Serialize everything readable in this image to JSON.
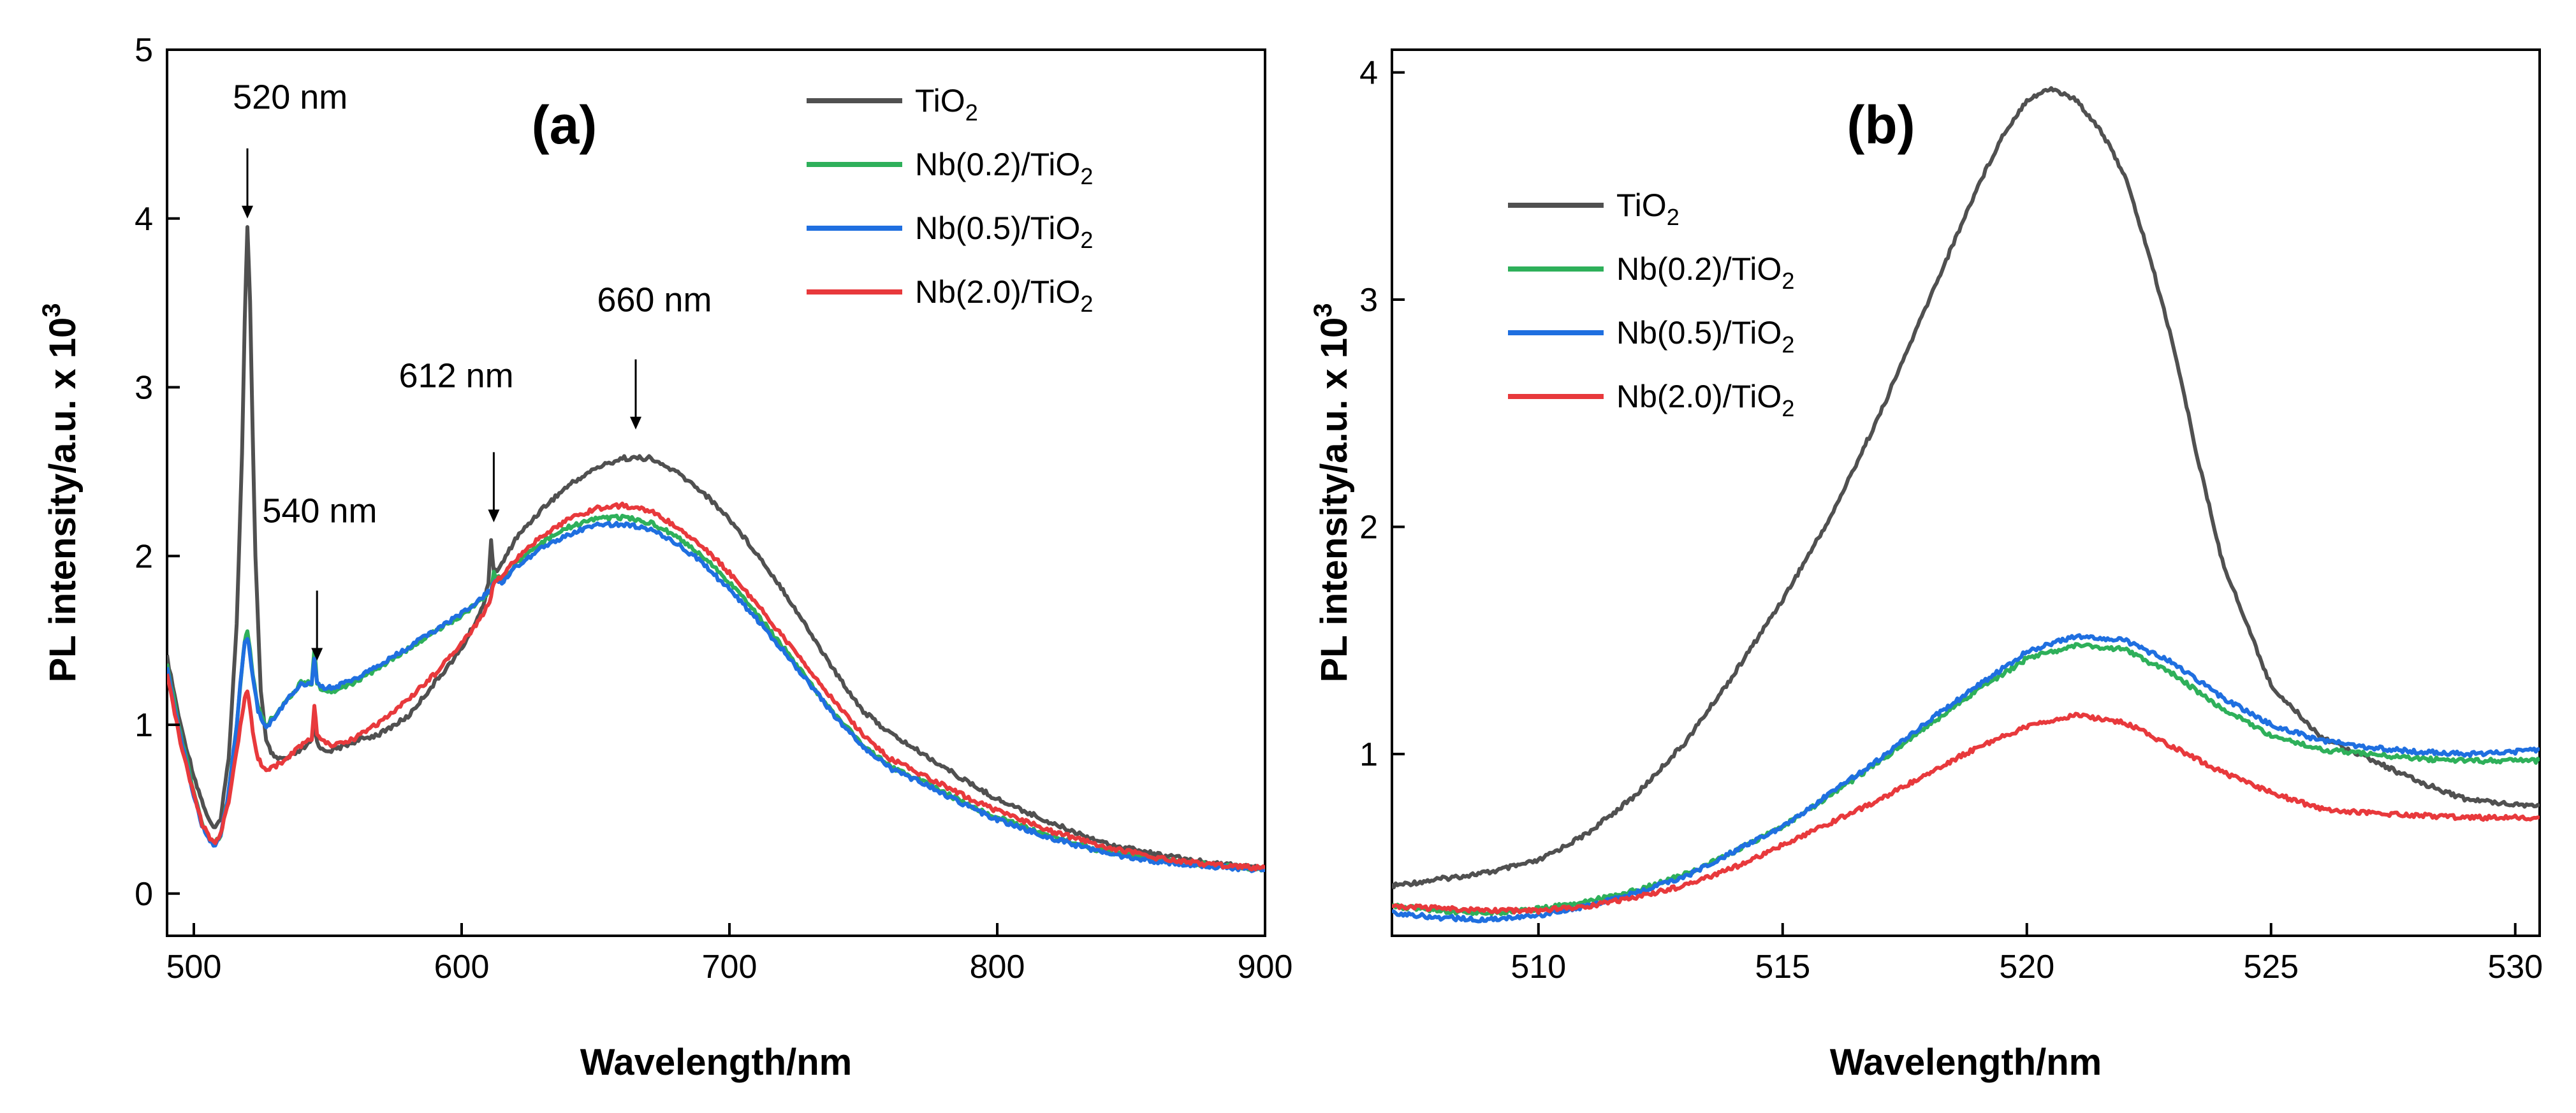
{
  "chart_data": [
    {
      "type": "line",
      "panel_label": "(a)",
      "xlabel": "Wavelength/nm",
      "ylabel": "PL intensity/a.u. x 10",
      "ylabel_sup": "3",
      "xlim": [
        490,
        900
      ],
      "ylim": [
        -0.25,
        5
      ],
      "xticks": [
        500,
        600,
        700,
        800,
        900
      ],
      "xtick_labels": [
        "500",
        "600",
        "700",
        "800",
        "900"
      ],
      "yticks": [
        0,
        1,
        2,
        3,
        4,
        5
      ],
      "ytick_labels": [
        "0",
        "1",
        "2",
        "3",
        "4",
        "5"
      ],
      "legend_position": "top-right",
      "series": [
        {
          "name": "TiO2",
          "label_main": "TiO",
          "label_sub": "2",
          "color": "#505050",
          "x": [
            490,
            495,
            500,
            503,
            506,
            508,
            510,
            513,
            516,
            518,
            519,
            520,
            521,
            522,
            523,
            525,
            527,
            530,
            535,
            540,
            544,
            545,
            546,
            548,
            552,
            560,
            570,
            580,
            590,
            600,
            608,
            610,
            611,
            612,
            615,
            620,
            630,
            640,
            650,
            660,
            670,
            680,
            690,
            700,
            710,
            720,
            730,
            740,
            750,
            760,
            770,
            780,
            790,
            800,
            820,
            840,
            860,
            880,
            900
          ],
          "y": [
            1.4,
            1.0,
            0.7,
            0.55,
            0.42,
            0.38,
            0.45,
            0.8,
            1.6,
            2.6,
            3.4,
            3.95,
            3.5,
            2.7,
            2.0,
            1.2,
            0.9,
            0.8,
            0.8,
            0.85,
            0.9,
            1.0,
            0.9,
            0.85,
            0.85,
            0.9,
            0.95,
            1.05,
            1.25,
            1.45,
            1.7,
            1.85,
            2.1,
            1.9,
            1.95,
            2.1,
            2.28,
            2.42,
            2.52,
            2.58,
            2.58,
            2.5,
            2.38,
            2.22,
            2.02,
            1.8,
            1.55,
            1.3,
            1.08,
            0.95,
            0.85,
            0.75,
            0.65,
            0.56,
            0.42,
            0.3,
            0.23,
            0.18,
            0.15
          ]
        },
        {
          "name": "Nb(0.2)/TiO2",
          "label_main": "Nb(0.2)/TiO",
          "label_sub": "2",
          "color": "#2eb05a",
          "x": [
            490,
            495,
            500,
            503,
            506,
            508,
            510,
            513,
            516,
            518,
            519,
            520,
            521,
            522,
            524,
            527,
            530,
            535,
            540,
            544,
            545,
            546,
            548,
            552,
            560,
            570,
            580,
            590,
            600,
            608,
            611,
            612,
            615,
            620,
            630,
            640,
            650,
            660,
            670,
            680,
            690,
            700,
            710,
            720,
            730,
            740,
            750,
            760,
            770,
            780,
            790,
            800,
            820,
            840,
            860,
            880,
            900
          ],
          "y": [
            1.35,
            0.95,
            0.6,
            0.42,
            0.32,
            0.3,
            0.35,
            0.6,
            1.0,
            1.35,
            1.5,
            1.55,
            1.45,
            1.3,
            1.1,
            1.0,
            1.05,
            1.15,
            1.25,
            1.25,
            1.45,
            1.25,
            1.2,
            1.2,
            1.25,
            1.35,
            1.45,
            1.55,
            1.65,
            1.75,
            1.8,
            1.9,
            1.85,
            1.95,
            2.08,
            2.17,
            2.22,
            2.23,
            2.2,
            2.12,
            2.0,
            1.84,
            1.66,
            1.46,
            1.25,
            1.05,
            0.88,
            0.75,
            0.68,
            0.6,
            0.52,
            0.45,
            0.34,
            0.25,
            0.2,
            0.17,
            0.14
          ]
        },
        {
          "name": "Nb(0.5)/TiO2",
          "label_main": "Nb(0.5)/TiO",
          "label_sub": "2",
          "color": "#1f6fe0",
          "x": [
            490,
            495,
            500,
            503,
            506,
            508,
            510,
            513,
            516,
            518,
            519,
            520,
            521,
            522,
            524,
            527,
            530,
            535,
            540,
            544,
            545,
            546,
            548,
            552,
            560,
            570,
            580,
            590,
            600,
            608,
            611,
            612,
            615,
            620,
            630,
            640,
            650,
            660,
            670,
            680,
            690,
            700,
            710,
            720,
            730,
            740,
            750,
            760,
            770,
            780,
            790,
            800,
            820,
            840,
            860,
            880,
            900
          ],
          "y": [
            1.33,
            0.93,
            0.58,
            0.41,
            0.31,
            0.29,
            0.34,
            0.6,
            1.0,
            1.35,
            1.5,
            1.52,
            1.42,
            1.28,
            1.08,
            0.98,
            1.04,
            1.15,
            1.24,
            1.25,
            1.38,
            1.26,
            1.22,
            1.22,
            1.27,
            1.36,
            1.46,
            1.56,
            1.66,
            1.76,
            1.8,
            1.85,
            1.84,
            1.93,
            2.05,
            2.13,
            2.18,
            2.19,
            2.16,
            2.08,
            1.96,
            1.8,
            1.63,
            1.44,
            1.24,
            1.04,
            0.87,
            0.74,
            0.67,
            0.59,
            0.51,
            0.44,
            0.33,
            0.24,
            0.19,
            0.16,
            0.14
          ]
        },
        {
          "name": "Nb(2.0)/TiO2",
          "label_main": "Nb(2.0)/TiO",
          "label_sub": "2",
          "color": "#e8393c",
          "x": [
            490,
            495,
            500,
            503,
            506,
            508,
            510,
            513,
            516,
            518,
            519,
            520,
            521,
            522,
            524,
            527,
            530,
            535,
            540,
            544,
            545,
            546,
            548,
            552,
            560,
            570,
            580,
            590,
            600,
            608,
            611,
            612,
            615,
            620,
            630,
            640,
            650,
            660,
            670,
            680,
            690,
            700,
            710,
            720,
            730,
            740,
            750,
            760,
            770,
            780,
            790,
            800,
            820,
            840,
            860,
            880,
            900
          ],
          "y": [
            1.3,
            0.9,
            0.58,
            0.42,
            0.32,
            0.3,
            0.35,
            0.55,
            0.85,
            1.05,
            1.15,
            1.2,
            1.1,
            0.95,
            0.8,
            0.72,
            0.75,
            0.8,
            0.88,
            0.92,
            1.1,
            0.95,
            0.9,
            0.88,
            0.92,
            1.02,
            1.15,
            1.3,
            1.48,
            1.65,
            1.75,
            1.85,
            1.88,
            1.98,
            2.12,
            2.22,
            2.28,
            2.3,
            2.27,
            2.18,
            2.06,
            1.9,
            1.72,
            1.52,
            1.32,
            1.12,
            0.94,
            0.8,
            0.72,
            0.64,
            0.56,
            0.49,
            0.37,
            0.28,
            0.21,
            0.17,
            0.15
          ]
        }
      ],
      "annotations": [
        {
          "text": "520 nm",
          "x": 520,
          "y": 4.0,
          "label_x": 536,
          "label_y": 4.65
        },
        {
          "text": "540 nm",
          "x": 546,
          "y": 1.38,
          "label_x": 547,
          "label_y": 2.2
        },
        {
          "text": "612 nm",
          "x": 612,
          "y": 2.2,
          "label_x": 598,
          "label_y": 3.0
        },
        {
          "text": "660 nm",
          "x": 665,
          "y": 2.75,
          "label_x": 672,
          "label_y": 3.45
        }
      ]
    },
    {
      "type": "line",
      "panel_label": "(b)",
      "xlabel": "Wavelength/nm",
      "ylabel": "PL intensity/a.u. x 10",
      "ylabel_sup": "3",
      "xlim": [
        507,
        530.5
      ],
      "ylim": [
        0.2,
        4.1
      ],
      "xticks": [
        510,
        515,
        520,
        525,
        530
      ],
      "xtick_labels": [
        "510",
        "515",
        "520",
        "525",
        "530"
      ],
      "yticks": [
        1,
        2,
        3,
        4
      ],
      "ytick_labels": [
        "1",
        "2",
        "3",
        "4"
      ],
      "legend_position": "top-left",
      "series": [
        {
          "name": "TiO2",
          "label_main": "TiO",
          "label_sub": "2",
          "color": "#505050",
          "x": [
            507,
            508,
            509,
            510,
            511,
            512,
            513,
            514,
            515,
            516,
            517,
            518,
            519,
            519.5,
            520,
            520.5,
            521,
            521.5,
            522,
            522.5,
            523,
            523.5,
            524,
            525,
            526,
            527,
            528,
            529,
            530,
            530.5
          ],
          "y": [
            0.42,
            0.45,
            0.48,
            0.53,
            0.65,
            0.82,
            1.05,
            1.35,
            1.68,
            2.05,
            2.5,
            3.0,
            3.5,
            3.72,
            3.88,
            3.93,
            3.88,
            3.75,
            3.55,
            3.2,
            2.8,
            2.3,
            1.85,
            1.3,
            1.08,
            0.98,
            0.88,
            0.8,
            0.78,
            0.77
          ]
        },
        {
          "name": "Nb(0.2)/TiO2",
          "label_main": "Nb(0.2)/TiO",
          "label_sub": "2",
          "color": "#2eb05a",
          "x": [
            507,
            508,
            509,
            510,
            511,
            512,
            513,
            514,
            515,
            516,
            517,
            518,
            519,
            520,
            521,
            522,
            523,
            524,
            525,
            526,
            527,
            528,
            529,
            530,
            530.5
          ],
          "y": [
            0.33,
            0.31,
            0.3,
            0.32,
            0.35,
            0.4,
            0.47,
            0.57,
            0.68,
            0.82,
            0.97,
            1.13,
            1.28,
            1.42,
            1.48,
            1.46,
            1.35,
            1.2,
            1.08,
            1.02,
            1.0,
            0.98,
            0.97,
            0.97,
            0.97
          ]
        },
        {
          "name": "Nb(0.5)/TiO2",
          "label_main": "Nb(0.5)/TiO",
          "label_sub": "2",
          "color": "#1f6fe0",
          "x": [
            507,
            508,
            509,
            510,
            511,
            512,
            513,
            514,
            515,
            516,
            517,
            518,
            519,
            520,
            521,
            522,
            523,
            524,
            525,
            526,
            527,
            528,
            529,
            530,
            530.5
          ],
          "y": [
            0.3,
            0.28,
            0.27,
            0.29,
            0.33,
            0.39,
            0.46,
            0.57,
            0.68,
            0.83,
            0.98,
            1.15,
            1.3,
            1.45,
            1.52,
            1.5,
            1.4,
            1.25,
            1.13,
            1.06,
            1.03,
            1.01,
            1.0,
            1.01,
            1.02
          ]
        },
        {
          "name": "Nb(2.0)/TiO2",
          "label_main": "Nb(2.0)/TiO",
          "label_sub": "2",
          "color": "#e8393c",
          "x": [
            507,
            508,
            509,
            510,
            511,
            512,
            513,
            514,
            515,
            516,
            517,
            518,
            519,
            520,
            521,
            522,
            523,
            524,
            525,
            526,
            527,
            528,
            529,
            530,
            530.5
          ],
          "y": [
            0.33,
            0.32,
            0.31,
            0.31,
            0.33,
            0.37,
            0.42,
            0.5,
            0.6,
            0.7,
            0.8,
            0.92,
            1.03,
            1.12,
            1.17,
            1.14,
            1.03,
            0.92,
            0.83,
            0.76,
            0.74,
            0.73,
            0.72,
            0.72,
            0.72
          ]
        }
      ]
    }
  ]
}
